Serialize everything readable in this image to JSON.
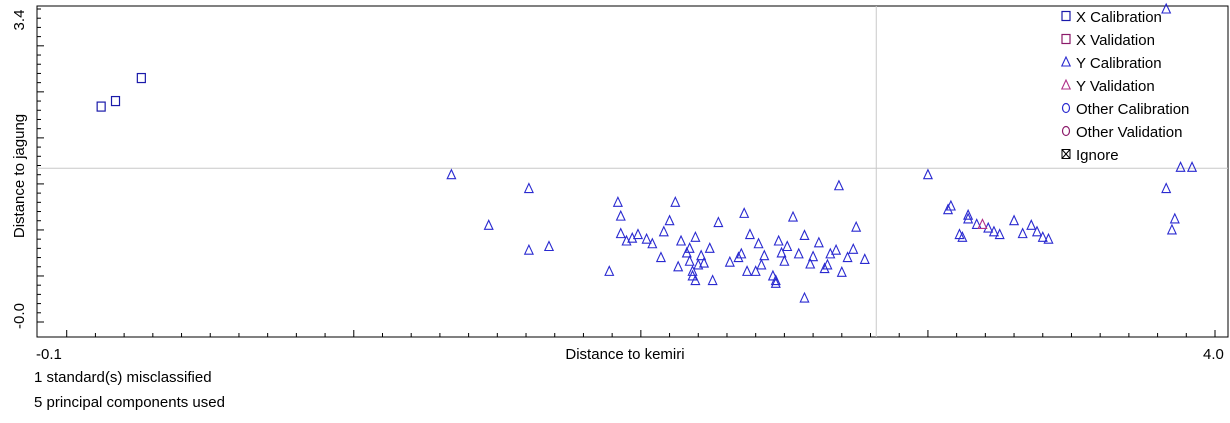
{
  "chart_data": {
    "type": "scatter",
    "xlabel": "Distance to kemiri",
    "ylabel": "Distance to jagung",
    "x_tick_labels": [
      "-0.1",
      "4.0"
    ],
    "y_tick_labels": [
      "3.4",
      "-0.0"
    ],
    "xlim": [
      -0.1,
      4.0
    ],
    "ylim": [
      -0.1,
      3.4
    ],
    "threshold_x": 2.82,
    "threshold_y": 1.67,
    "legend_position": "top-right",
    "legend": [
      {
        "label": "X Calibration",
        "marker": "square",
        "color": "#1a1aaa"
      },
      {
        "label": "X Validation",
        "marker": "square",
        "color": "#8b1a6a"
      },
      {
        "label": "Y Calibration",
        "marker": "triangle",
        "color": "#2a2ad0"
      },
      {
        "label": "Y Validation",
        "marker": "triangle",
        "color": "#b0308a"
      },
      {
        "label": "Other Calibration",
        "marker": "circle",
        "color": "#2a2ad0"
      },
      {
        "label": "Other Validation",
        "marker": "circle",
        "color": "#8b1a6a"
      },
      {
        "label": "Ignore",
        "marker": "cross-square",
        "color": "#000000"
      }
    ],
    "series": [
      {
        "name": "X Calibration",
        "marker": "square",
        "color": "#1a1aaa",
        "x": [
          0.12,
          0.17,
          0.26
        ],
        "y": [
          2.34,
          2.4,
          2.65
        ]
      },
      {
        "name": "Y Calibration",
        "marker": "triangle",
        "color": "#2a2ad0",
        "x": [
          1.34,
          1.47,
          1.61,
          1.61,
          1.68,
          1.89,
          1.92,
          1.93,
          1.93,
          1.95,
          1.97,
          1.99,
          2.02,
          2.04,
          2.07,
          2.08,
          2.1,
          2.12,
          2.13,
          2.14,
          2.16,
          2.17,
          2.17,
          2.18,
          2.19,
          2.2,
          2.21,
          2.22,
          2.24,
          2.25,
          2.27,
          2.31,
          2.34,
          2.35,
          2.36,
          2.37,
          2.38,
          2.41,
          2.42,
          2.43,
          2.46,
          2.47,
          2.48,
          2.49,
          2.5,
          2.51,
          2.53,
          2.55,
          2.57,
          2.59,
          2.6,
          2.62,
          2.64,
          2.66,
          2.68,
          2.69,
          2.7,
          2.72,
          2.74,
          2.75,
          2.78,
          3.07,
          3.08,
          3.11,
          3.12,
          3.14,
          3.17,
          3.21,
          3.23,
          3.25,
          3.3,
          3.33,
          3.36,
          3.38,
          3.4,
          3.42,
          3.83,
          3.85,
          3.86,
          3.88,
          2.19,
          2.57,
          3.0,
          2.18,
          2.4,
          2.47,
          2.65,
          3.14,
          3.92
        ],
        "y": [
          1.6,
          1.05,
          1.45,
          0.78,
          0.82,
          0.55,
          1.3,
          1.15,
          0.96,
          0.88,
          0.91,
          0.95,
          0.9,
          0.85,
          0.7,
          0.98,
          1.1,
          1.3,
          0.6,
          0.88,
          0.75,
          0.8,
          0.66,
          0.55,
          0.92,
          0.62,
          0.72,
          0.64,
          0.8,
          0.45,
          1.08,
          0.65,
          0.7,
          0.74,
          1.18,
          0.55,
          0.95,
          0.85,
          0.62,
          0.72,
          0.5,
          0.42,
          0.88,
          0.75,
          0.66,
          0.82,
          1.14,
          0.74,
          0.94,
          0.63,
          0.71,
          0.86,
          0.58,
          0.74,
          0.78,
          1.48,
          0.54,
          0.7,
          0.79,
          1.03,
          0.68,
          1.22,
          1.26,
          0.95,
          0.92,
          1.16,
          1.06,
          1.02,
          0.98,
          0.95,
          1.1,
          0.96,
          1.05,
          0.98,
          0.92,
          0.9,
          1.45,
          1.0,
          1.12,
          1.68,
          0.45,
          0.26,
          1.6,
          0.5,
          0.55,
          0.45,
          0.62,
          1.12,
          1.68
        ]
      },
      {
        "name": "Y Validation",
        "marker": "triangle",
        "color": "#b0308a",
        "x": [
          3.19
        ],
        "y": [
          1.06
        ]
      }
    ],
    "extra_points": [
      {
        "x": 3.83,
        "y": 3.4,
        "marker": "triangle",
        "color": "#2a2ad0"
      }
    ]
  },
  "footer": {
    "line1": "1 standard(s) misclassified",
    "line2": "5 principal components used"
  }
}
